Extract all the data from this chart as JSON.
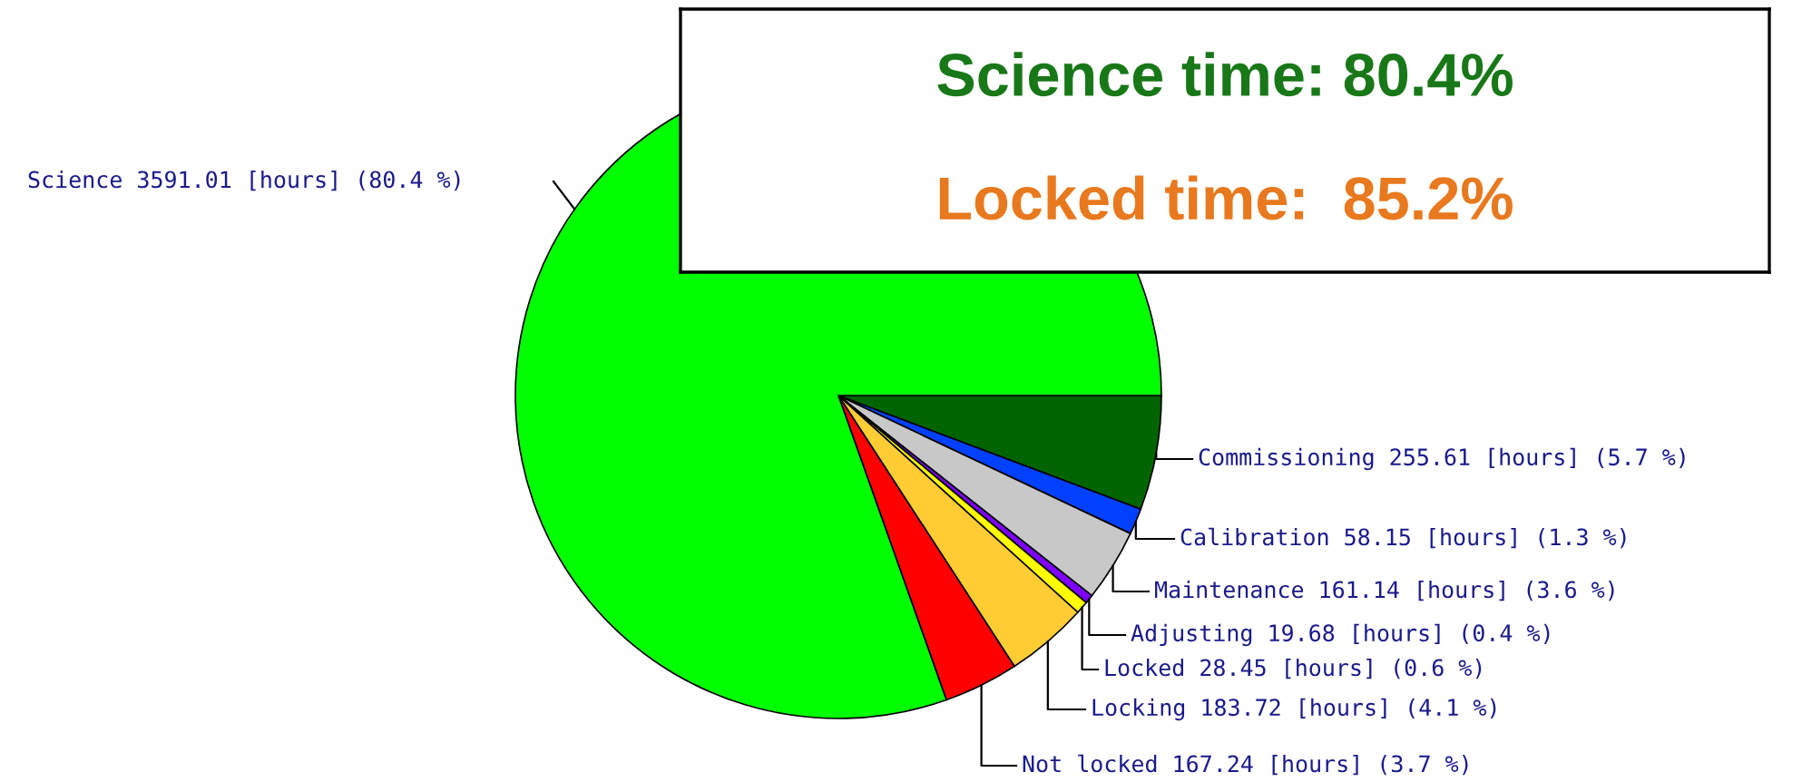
{
  "chart_data": {
    "type": "pie",
    "categories": [
      "Commissioning",
      "Calibration",
      "Maintenance",
      "Adjusting",
      "Locked",
      "Locking",
      "Not locked",
      "Science"
    ],
    "values": [
      255.61,
      58.15,
      161.14,
      19.68,
      28.45,
      183.72,
      167.24,
      3591.01
    ],
    "value_labels": [
      "255.61 [hours] (5.7 %)",
      "58.15 [hours] (1.3 %)",
      "161.14 [hours] (3.6 %)",
      "19.68 [hours] (0.4 %)",
      "28.45 [hours] (0.6 %)",
      "183.72 [hours] (4.1 %)",
      "167.24 [hours] (3.7 %)",
      "3591.01 [hours] (80.4 %)"
    ],
    "colors": [
      "#006400",
      "#0040ff",
      "#c8c8c8",
      "#8000ff",
      "#ffff00",
      "#ffcc33",
      "#ff0000",
      "#00ff00"
    ],
    "annotations": [
      "Science time: 80.4%",
      "Locked time:  85.2%"
    ]
  }
}
